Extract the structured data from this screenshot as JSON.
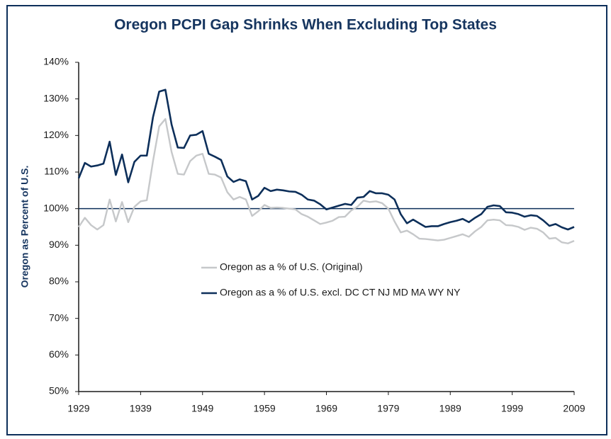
{
  "chart_data": {
    "type": "line",
    "title": "Oregon PCPI Gap Shrinks When Excluding Top States",
    "y_label": "Oregon as Percent of U.S.",
    "x": [
      1929,
      1930,
      1931,
      1932,
      1933,
      1934,
      1935,
      1936,
      1937,
      1938,
      1939,
      1940,
      1941,
      1942,
      1943,
      1944,
      1945,
      1946,
      1947,
      1948,
      1949,
      1950,
      1951,
      1952,
      1953,
      1954,
      1955,
      1956,
      1957,
      1958,
      1959,
      1960,
      1961,
      1962,
      1963,
      1964,
      1965,
      1966,
      1967,
      1968,
      1969,
      1970,
      1971,
      1972,
      1973,
      1974,
      1975,
      1976,
      1977,
      1978,
      1979,
      1980,
      1981,
      1982,
      1983,
      1984,
      1985,
      1986,
      1987,
      1988,
      1989,
      1990,
      1991,
      1992,
      1993,
      1994,
      1995,
      1996,
      1997,
      1998,
      1999,
      2000,
      2001,
      2002,
      2003,
      2004,
      2005,
      2006,
      2007,
      2008,
      2009
    ],
    "series": [
      {
        "name": "Oregon as a % of U.S. (Original)",
        "color": "#c6c8ca",
        "values": [
          95,
          97.5,
          95.5,
          94.3,
          95.5,
          102.5,
          96.5,
          101.8,
          96.3,
          100.5,
          102,
          102.3,
          113,
          122.5,
          124.5,
          115.5,
          109.5,
          109.3,
          113,
          114.5,
          115,
          109.5,
          109.3,
          108.5,
          104.5,
          102.5,
          103.2,
          102.5,
          98,
          99.3,
          101,
          100.2,
          100.3,
          100.2,
          100,
          99.8,
          98.5,
          97.8,
          96.8,
          95.8,
          96.2,
          96.7,
          97.7,
          97.8,
          99.5,
          100.5,
          102.2,
          101.8,
          102,
          101.5,
          100,
          96.5,
          93.5,
          94,
          93,
          91.8,
          91.7,
          91.5,
          91.3,
          91.5,
          92,
          92.5,
          93,
          92.3,
          93.8,
          95,
          96.8,
          97,
          96.8,
          95.5,
          95.4,
          95,
          94.2,
          94.8,
          94.5,
          93.5,
          91.8,
          92,
          90.8,
          90.5,
          91.2
        ]
      },
      {
        "name": "Oregon as a % of U.S. excl. DC CT NJ MD MA WY NY",
        "color": "#0d2f5a",
        "values": [
          108.3,
          112.5,
          111.5,
          111.8,
          112.3,
          118.3,
          109.2,
          114.8,
          107.2,
          112.8,
          114.5,
          114.5,
          125,
          132,
          132.5,
          123,
          116.7,
          116.6,
          120,
          120.2,
          121.2,
          115,
          114.2,
          113.3,
          108.8,
          107.3,
          108,
          107.5,
          102.5,
          103.5,
          105.7,
          104.8,
          105.2,
          105,
          104.7,
          104.6,
          103.8,
          102.5,
          102.2,
          101.2,
          99.8,
          100.3,
          100.8,
          101.3,
          101,
          103,
          103.2,
          104.8,
          104.2,
          104.2,
          103.8,
          102.5,
          98.5,
          96,
          97,
          96,
          95,
          95.2,
          95.2,
          95.8,
          96.3,
          96.7,
          97.2,
          96.3,
          97.5,
          98.5,
          100.5,
          100.9,
          100.7,
          99,
          98.9,
          98.5,
          97.8,
          98.2,
          98,
          96.8,
          95.3,
          95.8,
          94.9,
          94.3,
          95
        ]
      }
    ],
    "xlim": [
      1929,
      2009
    ],
    "xticks": [
      1929,
      1939,
      1949,
      1959,
      1969,
      1979,
      1989,
      1999,
      2009
    ],
    "ylim": [
      50,
      140
    ],
    "yticks": [
      {
        "value": 50,
        "label": "50%"
      },
      {
        "value": 60,
        "label": "60%"
      },
      {
        "value": 70,
        "label": "70%"
      },
      {
        "value": 80,
        "label": "80%"
      },
      {
        "value": 90,
        "label": "90%"
      },
      {
        "value": 100,
        "label": "100%"
      },
      {
        "value": 110,
        "label": "110%"
      },
      {
        "value": 120,
        "label": "120%"
      },
      {
        "value": 130,
        "label": "130%"
      },
      {
        "value": 140,
        "label": "140%"
      }
    ],
    "reference_line": 100,
    "reference_color": "#0d2f5a",
    "grid": false,
    "legend": "center"
  }
}
